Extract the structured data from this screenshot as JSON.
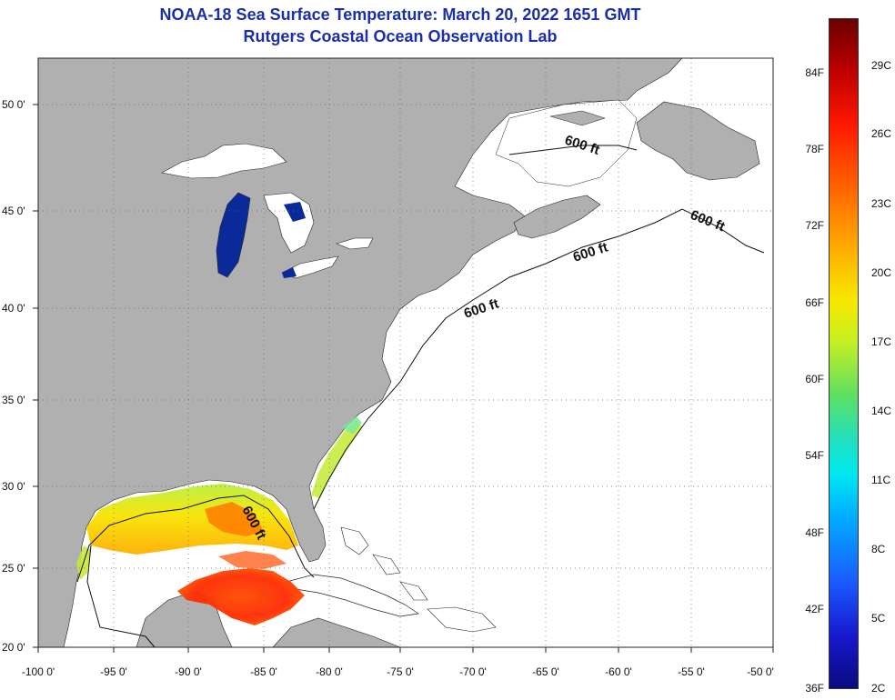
{
  "title": {
    "line1": "NOAA-18 Sea Surface Temperature:  March 20, 2022 1651 GMT",
    "line2": "Rutgers Coastal Ocean Observation Lab"
  },
  "latitude_labels": [
    "50 0'",
    "45 0'",
    "40 0'",
    "35 0'",
    "30 0'",
    "25 0'",
    "20 0'"
  ],
  "longitude_labels": [
    "-100 0'",
    "-95 0'",
    "-90 0'",
    "-85 0'",
    "-80 0'",
    "-75 0'",
    "-70 0'",
    "-65 0'",
    "-60 0'",
    "-55 0'",
    "-50 0'"
  ],
  "contour_label": "600 ft",
  "colorbar": {
    "fahrenheit": [
      "84F",
      "78F",
      "72F",
      "66F",
      "60F",
      "54F",
      "48F",
      "42F",
      "36F"
    ],
    "celsius": [
      "29C",
      "26C",
      "23C",
      "20C",
      "17C",
      "14C",
      "11C",
      "8C",
      "5C",
      "2C"
    ]
  },
  "colors": {
    "land": "#b0b0b0",
    "ocean_no_data": "#ffffff",
    "title": "#1a2fa8",
    "lakes": "#0a2a9a"
  }
}
